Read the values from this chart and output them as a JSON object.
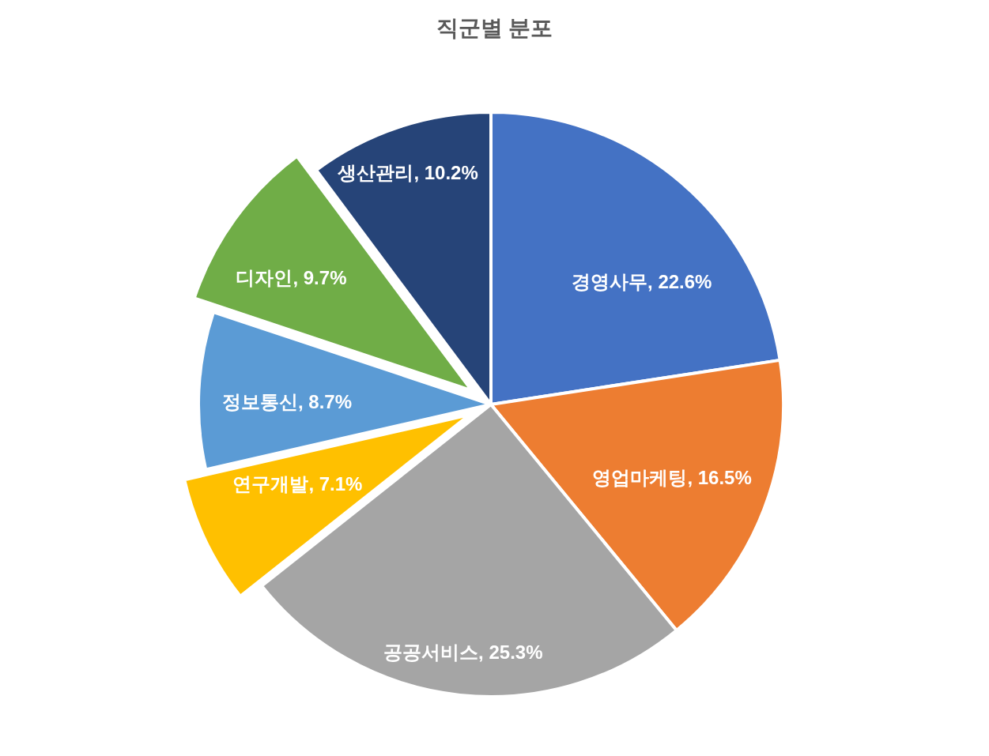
{
  "chart_data": {
    "type": "pie",
    "title": "직군별 분포",
    "categories": [
      "경영사무",
      "영업마케팅",
      "공공서비스",
      "연구개발",
      "정보통신",
      "디자인",
      "생산관리"
    ],
    "values": [
      22.6,
      16.5,
      25.3,
      7.1,
      8.7,
      9.7,
      10.2
    ],
    "colors": [
      "#4472c4",
      "#ed7d31",
      "#a5a5a5",
      "#ffc000",
      "#5b9bd5",
      "#70ad47",
      "#264478"
    ],
    "value_labels": [
      "22.6%",
      "16.5%",
      "25.3%",
      "7.1%",
      "8.7%",
      "9.7%",
      "10.2%"
    ]
  }
}
